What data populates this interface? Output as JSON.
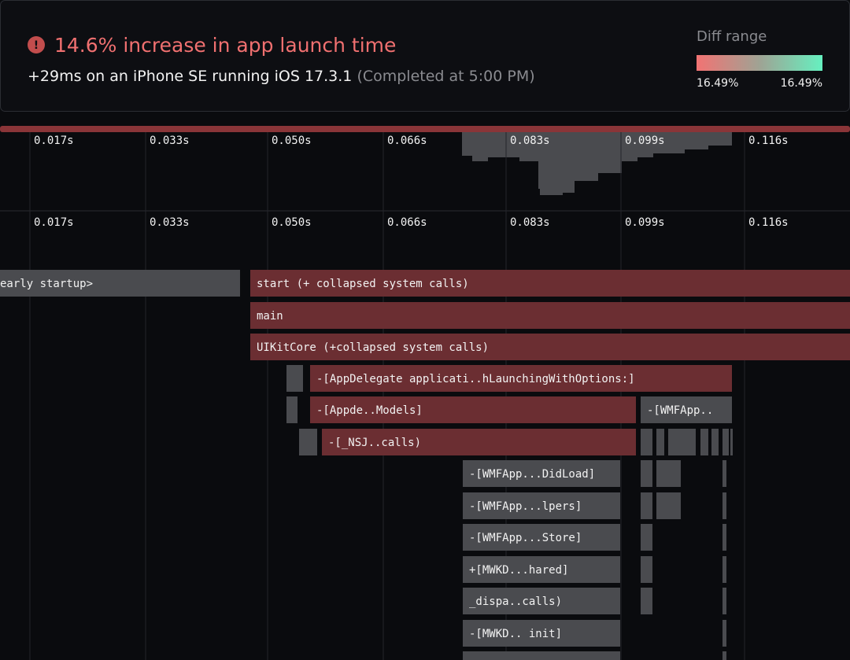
{
  "header": {
    "title": "14.6% increase in app launch time",
    "subtitle": "+29ms on an iPhone SE running iOS 17.3.1",
    "status": "(Completed at 5:00 PM)"
  },
  "diff_range": {
    "label": "Diff range",
    "min": "16.49%",
    "max": "16.49%"
  },
  "timeline": {
    "ticks": [
      "0.017s",
      "0.033s",
      "0.050s",
      "0.066s",
      "0.083s",
      "0.099s",
      "0.116s"
    ]
  },
  "flame": {
    "frames": [
      "early startup>",
      "start (+ collapsed system calls)",
      "main",
      "UIKitCore (+collapsed system calls)",
      "-[AppDelegate applicati..hLaunchingWithOptions:]",
      "-[Appde..Models]",
      "-[WMFApp..",
      "-[_NSJ..calls)",
      "-[WMFApp...DidLoad]",
      "-[WMFApp...lpers]",
      "-[WMFApp...Store]",
      "+[MWKD...hared]",
      "_dispa..calls)",
      "-[MWKD.. init]"
    ]
  }
}
